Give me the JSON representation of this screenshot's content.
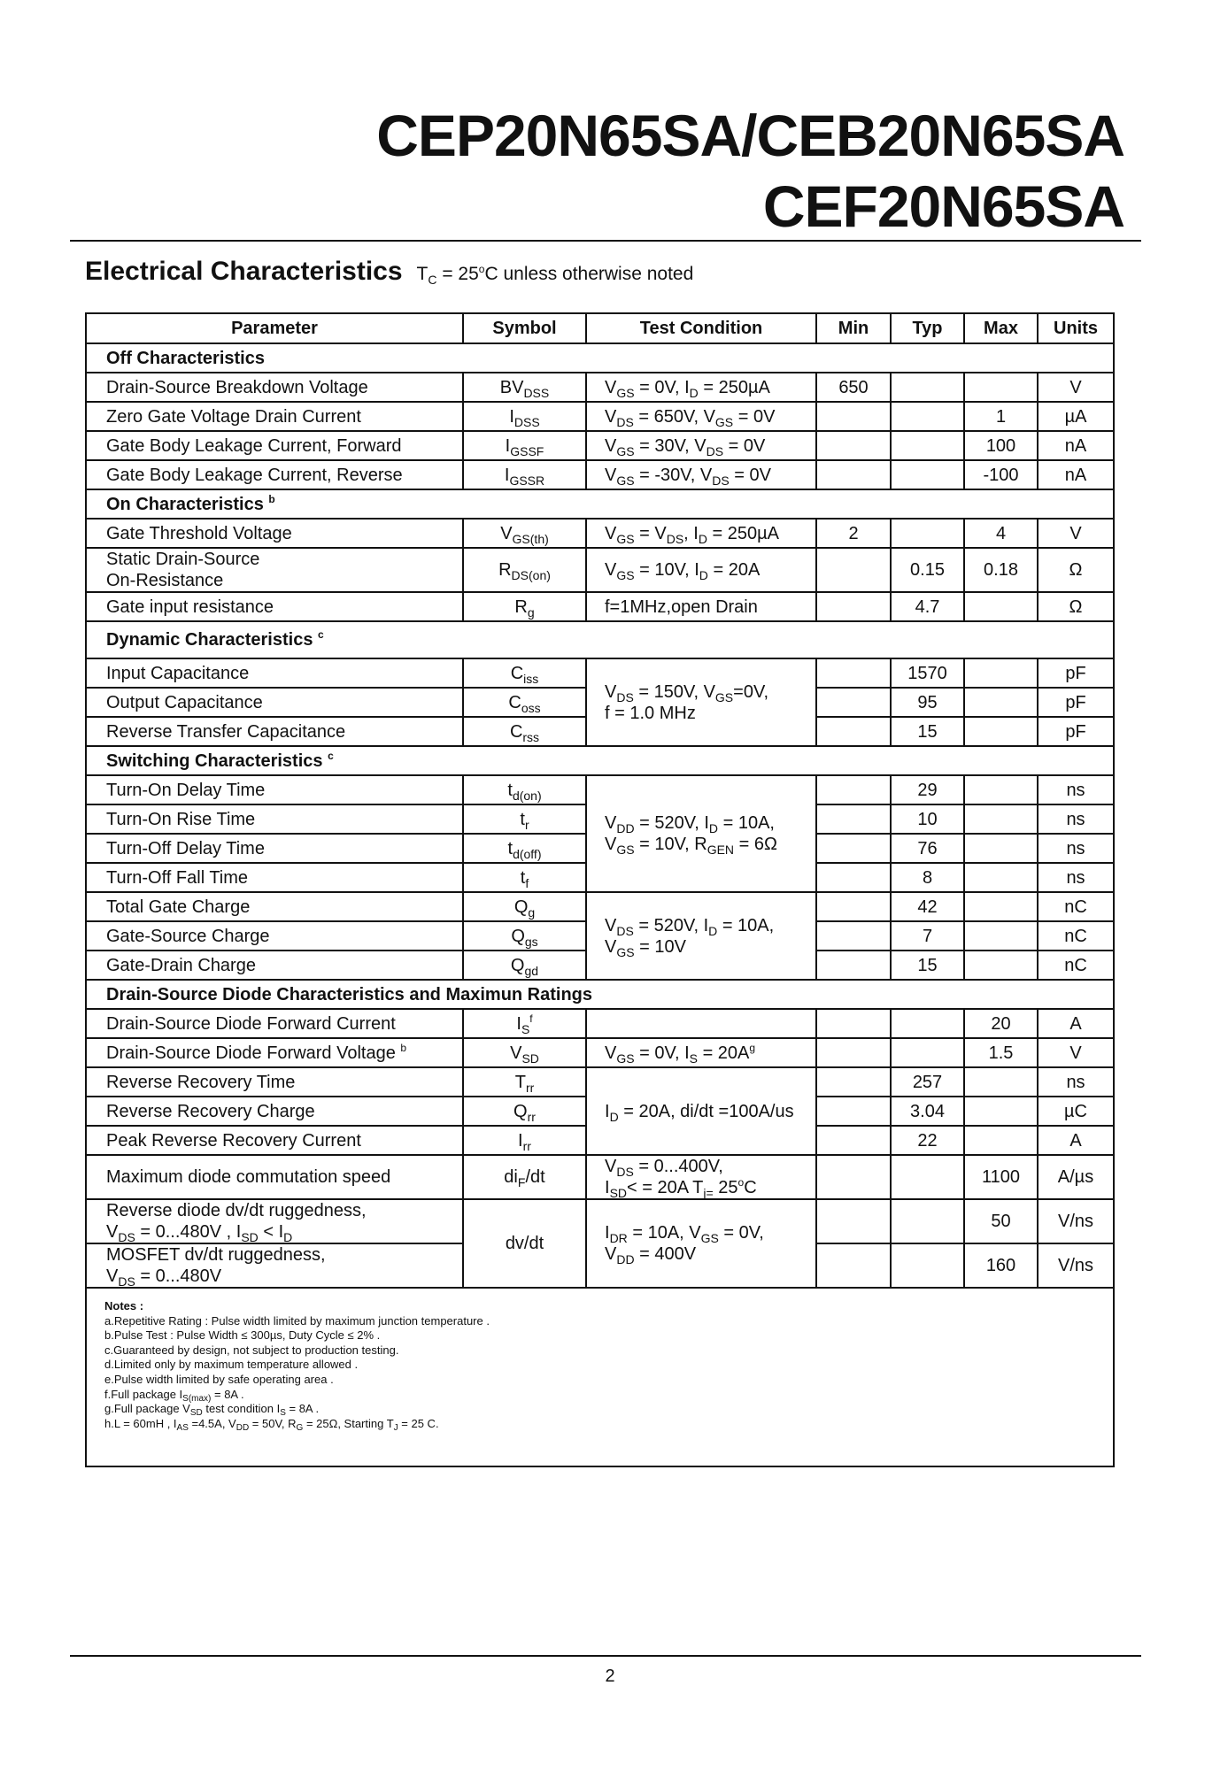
{
  "header": {
    "title_line1": "CEP20N65SA/CEB20N65SA",
    "title_line2": "CEF20N65SA"
  },
  "section": {
    "title": "Electrical Characteristics",
    "condition": "T_{C} = 25^{o}C unless otherwise noted"
  },
  "table": {
    "columns": [
      "Parameter",
      "Symbol",
      "Test Condition",
      "Min",
      "Typ",
      "Max",
      "Units"
    ],
    "sections": [
      {
        "title": "Off Characteristics",
        "rows": [
          {
            "parameter": "Drain-Source Breakdown Voltage",
            "symbol": "BV_{DSS}",
            "condition": "V_{GS} = 0V, I_{D} = 250µA",
            "min": "650",
            "typ": "",
            "max": "",
            "units": "V"
          },
          {
            "parameter": "Zero Gate Voltage Drain Current",
            "symbol": "I_{DSS}",
            "condition": "V_{DS} = 650V, V_{GS} = 0V",
            "min": "",
            "typ": "",
            "max": "1",
            "units": "µA"
          },
          {
            "parameter": "Gate Body Leakage Current, Forward",
            "symbol": "I_{GSSF}",
            "condition": "V_{GS} =  30V, V_{DS} = 0V",
            "min": "",
            "typ": "",
            "max": "100",
            "units": "nA"
          },
          {
            "parameter": "Gate Body Leakage Current, Reverse",
            "symbol": "I_{GSSR}",
            "condition": "V_{GS} = -30V, V_{DS} = 0V",
            "min": "",
            "typ": "",
            "max": "-100",
            "units": "nA"
          }
        ]
      },
      {
        "title": "On Characteristics ^{b}",
        "rows": [
          {
            "parameter": "Gate Threshold Voltage",
            "symbol": "V_{GS(th)}",
            "condition": "V_{GS} = V_{DS}, I_{D} = 250µA",
            "min": "2",
            "typ": "",
            "max": "4",
            "units": "V"
          },
          {
            "parameter": "Static Drain-Source\nOn-Resistance",
            "symbol": "R_{DS(on)}",
            "condition": "V_{GS} = 10V, I_{D} = 20A",
            "min": "",
            "typ": "0.15",
            "max": "0.18",
            "units": "Ω"
          },
          {
            "parameter": "Gate input resistance",
            "symbol": "R_{g}",
            "condition": "f=1MHz,open Drain",
            "min": "",
            "typ": "4.7",
            "max": "",
            "units": "Ω"
          }
        ]
      },
      {
        "title": "Dynamic Characteristics ^{c}",
        "rows": [
          {
            "parameter": "Input Capacitance",
            "symbol": "C_{iss}",
            "condition": "V_{DS} = 150V, V_{GS}=0V,\nf = 1.0 MHz",
            "min": "",
            "typ": "1570",
            "max": "",
            "units": "pF"
          },
          {
            "parameter": "Output Capacitance",
            "symbol": "C_{oss}",
            "condition": null,
            "min": "",
            "typ": "95",
            "max": "",
            "units": "pF"
          },
          {
            "parameter": "Reverse Transfer Capacitance",
            "symbol": "C_{rss}",
            "condition": null,
            "min": "",
            "typ": "15",
            "max": "",
            "units": "pF"
          }
        ]
      },
      {
        "title": "Switching Characteristics ^{c}",
        "rows": [
          {
            "parameter": "Turn-On Delay Time",
            "symbol": "t_{d(on)}",
            "condition": "V_{DD} = 520V, I_{D} = 10A,\nV_{GS} = 10V, R_{GEN} = 6Ω",
            "min": "",
            "typ": "29",
            "max": "",
            "units": "ns"
          },
          {
            "parameter": "Turn-On Rise Time",
            "symbol": "t_{r}",
            "condition": null,
            "min": "",
            "typ": "10",
            "max": "",
            "units": "ns"
          },
          {
            "parameter": "Turn-Off Delay Time",
            "symbol": "t_{d(off)}",
            "condition": null,
            "min": "",
            "typ": "76",
            "max": "",
            "units": "ns"
          },
          {
            "parameter": "Turn-Off Fall Time",
            "symbol": "t_{f}",
            "condition": null,
            "min": "",
            "typ": "8",
            "max": "",
            "units": "ns"
          },
          {
            "parameter": "Total Gate Charge",
            "symbol": "Q_{g}",
            "condition": "V_{DS} = 520V, I_{D} = 10A,\nV_{GS} = 10V",
            "min": "",
            "typ": "42",
            "max": "",
            "units": "nC"
          },
          {
            "parameter": "Gate-Source Charge",
            "symbol": "Q_{gs}",
            "condition": null,
            "min": "",
            "typ": "7",
            "max": "",
            "units": "nC"
          },
          {
            "parameter": "Gate-Drain Charge",
            "symbol": "Q_{gd}",
            "condition": null,
            "min": "",
            "typ": "15",
            "max": "",
            "units": "nC"
          }
        ]
      },
      {
        "title": "Drain-Source Diode Characteristics and Maximun Ratings",
        "rows": [
          {
            "parameter": "Drain-Source Diode Forward Current",
            "symbol": "I_{S}^{f}",
            "condition": "",
            "min": "",
            "typ": "",
            "max": "20",
            "units": "A"
          },
          {
            "parameter": "Drain-Source Diode Forward Voltage ^{b}",
            "symbol": "V_{SD}",
            "condition": "V_{GS} = 0V, I_{S} = 20A^{g}",
            "min": "",
            "typ": "",
            "max": "1.5",
            "units": "V"
          },
          {
            "parameter": "Reverse Recovery Time",
            "symbol": "T_{rr}",
            "condition": "I_{D} = 20A, di/dt =100A/us",
            "min": "",
            "typ": "257",
            "max": "",
            "units": "ns"
          },
          {
            "parameter": "Reverse Recovery Charge",
            "symbol": "Q_{rr}",
            "condition": null,
            "min": "",
            "typ": "3.04",
            "max": "",
            "units": "µC"
          },
          {
            "parameter": "Peak Reverse Recovery Current",
            "symbol": "I_{rr}",
            "condition": null,
            "min": "",
            "typ": "22",
            "max": "",
            "units": "A"
          },
          {
            "parameter": "Maximum diode commutation speed",
            "symbol": "di_{F}/dt",
            "condition": "V_{DS} = 0...400V,\nI_{SD}< = 20A  T_{j=} 25^{o}C",
            "min": "",
            "typ": "",
            "max": "1100",
            "units": "A/µs"
          },
          {
            "parameter": "Reverse diode dv/dt ruggedness,\nV_{DS} = 0...480V , I_{SD} < I_{D}",
            "symbol": "dv/dt",
            "condition": "I_{DR} = 10A, V_{GS} = 0V,\nV_{DD} = 400V",
            "min": "",
            "typ": "",
            "max": "50",
            "units": "V/ns"
          },
          {
            "parameter": "MOSFET dv/dt ruggedness,\nV_{DS} = 0...480V",
            "symbol": null,
            "condition": null,
            "min": "",
            "typ": "",
            "max": "160",
            "units": "V/ns"
          }
        ]
      }
    ]
  },
  "notes": {
    "title": "Notes :",
    "items": [
      "a.Repetitive Rating : Pulse width limited by maximum junction temperature .",
      "b.Pulse Test : Pulse Width ≤ 300µs, Duty Cycle ≤ 2% .",
      "c.Guaranteed by design, not subject to production testing.",
      "d.Limited only by maximum temperature allowed .",
      "e.Pulse width limited by safe operating area .",
      "f.Full package I_{S(max)} = 8A .",
      "g.Full package V_{SD} test condition I_{S} = 8A .",
      "h.L = 60mH , I_{AS} =4.5A, V_{DD} = 50V, R_{G} = 25Ω, Starting T_{J} = 25 C."
    ]
  },
  "footer": {
    "page_number": "2"
  }
}
